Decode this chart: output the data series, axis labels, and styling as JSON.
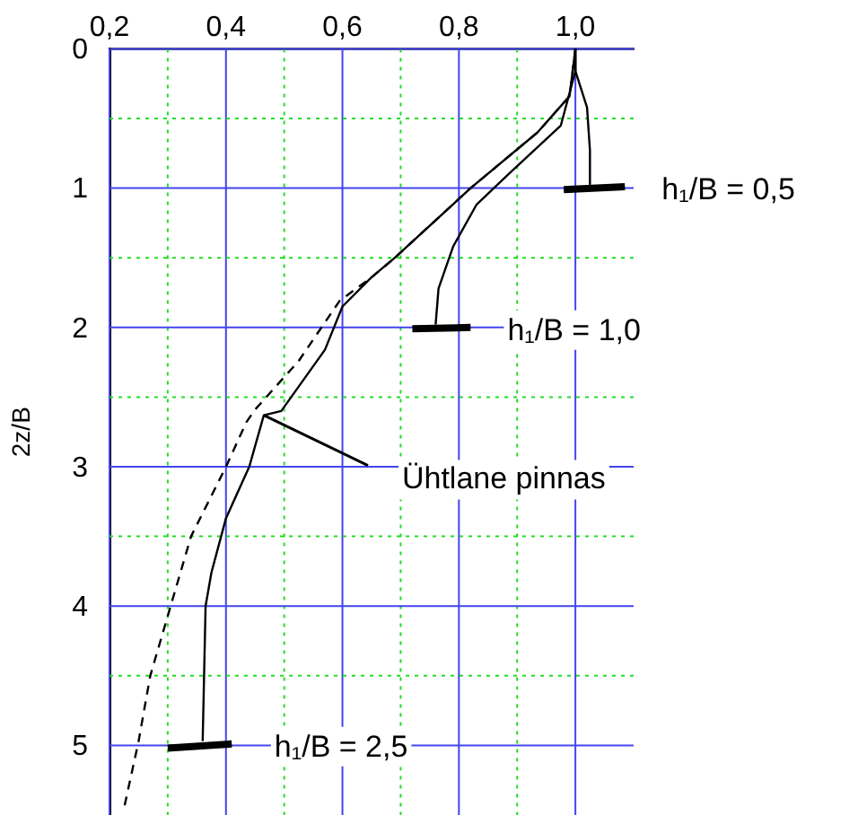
{
  "chart_data": {
    "type": "line",
    "ylabel": "2z/B",
    "xlim": [
      0.2,
      1.1
    ],
    "ylim": [
      5.5,
      0
    ],
    "xticks": [
      {
        "value": 0.2,
        "label": "0,2"
      },
      {
        "value": 0.3,
        "label": null
      },
      {
        "value": 0.4,
        "label": "0,4"
      },
      {
        "value": 0.5,
        "label": null
      },
      {
        "value": 0.6,
        "label": "0,6"
      },
      {
        "value": 0.7,
        "label": null
      },
      {
        "value": 0.8,
        "label": "0,8"
      },
      {
        "value": 0.9,
        "label": null
      },
      {
        "value": 1.0,
        "label": "1,0"
      }
    ],
    "yticks": [
      0,
      {
        "value": 0.5,
        "label": null
      },
      1,
      {
        "value": 1.5,
        "label": null
      },
      2,
      {
        "value": 2.5,
        "label": null
      },
      3,
      {
        "value": 3.5,
        "label": null
      },
      4,
      {
        "value": 4.5,
        "label": null
      },
      5
    ],
    "grid": true,
    "line_style": "solid",
    "annotations": [
      {
        "text": "Ühtlane pinnas",
        "x": 0.465,
        "y": 2.63
      }
    ],
    "series": [
      {
        "name": "h₁/B = 0,5",
        "color": "#000000",
        "x": [
          1.0,
          1.0,
          1.02,
          1.025,
          1.025
        ],
        "values": [
          0,
          0.16,
          0.42,
          0.73,
          0.97
        ]
      },
      {
        "color": "#000000",
        "x": [
          0.98,
          1.085
        ],
        "values": [
          1.01,
          0.99
        ]
      },
      {
        "name": "h₁/B = 1,0",
        "color": "#000000",
        "x": [
          1.0,
          1.0,
          0.975,
          0.885,
          0.83,
          0.79,
          0.765,
          0.76
        ],
        "values": [
          0,
          0.16,
          0.55,
          0.9,
          1.12,
          1.42,
          1.72,
          1.98
        ]
      },
      {
        "color": "#000000",
        "x": [
          0.72,
          0.82
        ],
        "values": [
          2.01,
          2.0
        ]
      },
      {
        "name": "h₁/B = 2,5",
        "color": "#000000",
        "x": [
          1.0,
          0.99,
          0.935,
          0.82,
          0.69,
          0.65,
          0.6,
          0.57,
          0.495,
          0.465,
          0.44,
          0.4,
          0.375,
          0.365,
          0.36
        ],
        "values": [
          0,
          0.34,
          0.6,
          1.0,
          1.5,
          1.64,
          1.85,
          2.16,
          2.6,
          2.63,
          3.0,
          3.37,
          3.76,
          4.0,
          4.97
        ]
      },
      {
        "color": "#000000",
        "x": [
          0.3,
          0.41
        ],
        "values": [
          5.02,
          4.99
        ]
      },
      {
        "color": "#000000",
        "line_style": "dashed",
        "x": [
          1.0,
          0.99,
          0.935,
          0.82,
          0.69,
          0.65,
          0.595,
          0.525,
          0.45,
          0.435,
          0.4,
          0.34,
          0.305,
          0.27,
          0.25,
          0.225
        ],
        "values": [
          0,
          0.34,
          0.6,
          1.0,
          1.5,
          1.64,
          1.81,
          2.24,
          2.59,
          2.68,
          3.0,
          3.5,
          4.0,
          4.5,
          4.97,
          5.45
        ]
      }
    ]
  }
}
